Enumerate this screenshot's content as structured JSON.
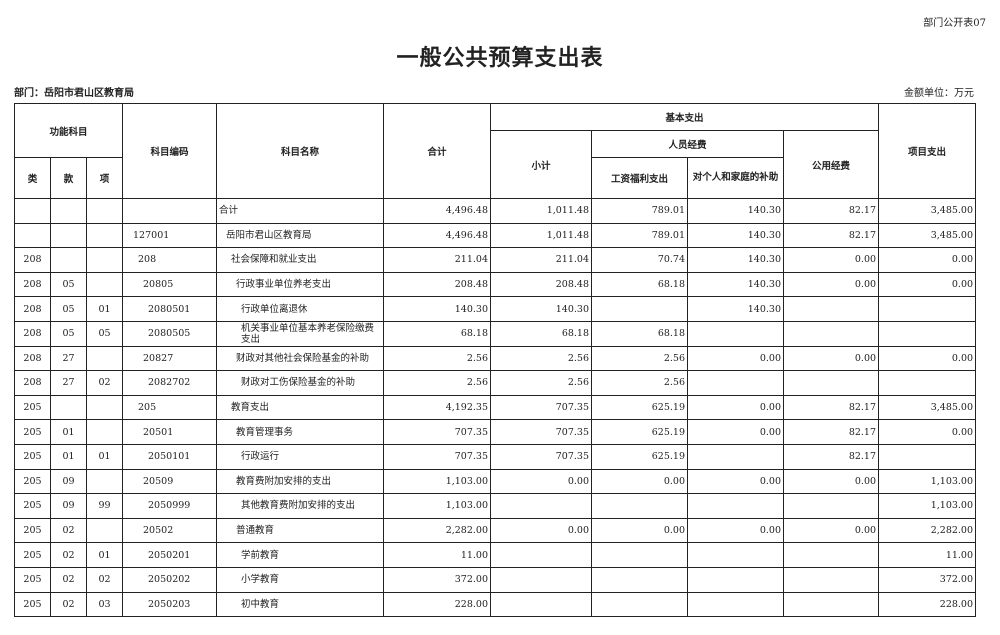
{
  "form_no": "部门公开表07",
  "title": "一般公共预算支出表",
  "department": "部门：岳阳市君山区教育局",
  "unit": "金额单位：万元",
  "headers": {
    "func_subject": "功能科目",
    "lei": "类",
    "kuan": "款",
    "xiang": "项",
    "code": "科目编码",
    "name": "科目名称",
    "total": "合计",
    "basic": "基本支出",
    "subtotal": "小计",
    "personnel": "人员经费",
    "salary": "工资福利支出",
    "subsidy": "对个人和家庭的补助",
    "public": "公用经费",
    "project": "项目支出"
  },
  "rows": [
    {
      "lei": "",
      "kuan": "",
      "xiang": "",
      "code": "",
      "name": "合计",
      "level": -1,
      "total": "4,496.48",
      "subtotal": "1,011.48",
      "salary": "789.01",
      "subsidy": "140.30",
      "public": "82.17",
      "project": "3,485.00"
    },
    {
      "lei": "",
      "kuan": "",
      "xiang": "",
      "code": "127001",
      "name": "岳阳市君山区教育局",
      "level": 0,
      "total": "4,496.48",
      "subtotal": "1,011.48",
      "salary": "789.01",
      "subsidy": "140.30",
      "public": "82.17",
      "project": "3,485.00"
    },
    {
      "lei": "208",
      "kuan": "",
      "xiang": "",
      "code": "208",
      "name": "社会保障和就业支出",
      "level": 1,
      "total": "211.04",
      "subtotal": "211.04",
      "salary": "70.74",
      "subsidy": "140.30",
      "public": "0.00",
      "project": "0.00"
    },
    {
      "lei": "208",
      "kuan": "05",
      "xiang": "",
      "code": "20805",
      "name": "行政事业单位养老支出",
      "level": 2,
      "total": "208.48",
      "subtotal": "208.48",
      "salary": "68.18",
      "subsidy": "140.30",
      "public": "0.00",
      "project": "0.00"
    },
    {
      "lei": "208",
      "kuan": "05",
      "xiang": "01",
      "code": "2080501",
      "name": "行政单位离退休",
      "level": 3,
      "total": "140.30",
      "subtotal": "140.30",
      "salary": "",
      "subsidy": "140.30",
      "public": "",
      "project": ""
    },
    {
      "lei": "208",
      "kuan": "05",
      "xiang": "05",
      "code": "2080505",
      "name": "机关事业单位基本养老保险缴费支出",
      "level": 3,
      "total": "68.18",
      "subtotal": "68.18",
      "salary": "68.18",
      "subsidy": "",
      "public": "",
      "project": ""
    },
    {
      "lei": "208",
      "kuan": "27",
      "xiang": "",
      "code": "20827",
      "name": "财政对其他社会保险基金的补助",
      "level": 2,
      "total": "2.56",
      "subtotal": "2.56",
      "salary": "2.56",
      "subsidy": "0.00",
      "public": "0.00",
      "project": "0.00"
    },
    {
      "lei": "208",
      "kuan": "27",
      "xiang": "02",
      "code": "2082702",
      "name": "财政对工伤保险基金的补助",
      "level": 3,
      "total": "2.56",
      "subtotal": "2.56",
      "salary": "2.56",
      "subsidy": "",
      "public": "",
      "project": ""
    },
    {
      "lei": "205",
      "kuan": "",
      "xiang": "",
      "code": "205",
      "name": "教育支出",
      "level": 1,
      "total": "4,192.35",
      "subtotal": "707.35",
      "salary": "625.19",
      "subsidy": "0.00",
      "public": "82.17",
      "project": "3,485.00"
    },
    {
      "lei": "205",
      "kuan": "01",
      "xiang": "",
      "code": "20501",
      "name": "教育管理事务",
      "level": 2,
      "total": "707.35",
      "subtotal": "707.35",
      "salary": "625.19",
      "subsidy": "0.00",
      "public": "82.17",
      "project": "0.00"
    },
    {
      "lei": "205",
      "kuan": "01",
      "xiang": "01",
      "code": "2050101",
      "name": "行政运行",
      "level": 3,
      "total": "707.35",
      "subtotal": "707.35",
      "salary": "625.19",
      "subsidy": "",
      "public": "82.17",
      "project": ""
    },
    {
      "lei": "205",
      "kuan": "09",
      "xiang": "",
      "code": "20509",
      "name": "教育费附加安排的支出",
      "level": 2,
      "total": "1,103.00",
      "subtotal": "0.00",
      "salary": "0.00",
      "subsidy": "0.00",
      "public": "0.00",
      "project": "1,103.00"
    },
    {
      "lei": "205",
      "kuan": "09",
      "xiang": "99",
      "code": "2050999",
      "name": "其他教育费附加安排的支出",
      "level": 3,
      "total": "1,103.00",
      "subtotal": "",
      "salary": "",
      "subsidy": "",
      "public": "",
      "project": "1,103.00"
    },
    {
      "lei": "205",
      "kuan": "02",
      "xiang": "",
      "code": "20502",
      "name": "普通教育",
      "level": 2,
      "total": "2,282.00",
      "subtotal": "0.00",
      "salary": "0.00",
      "subsidy": "0.00",
      "public": "0.00",
      "project": "2,282.00"
    },
    {
      "lei": "205",
      "kuan": "02",
      "xiang": "01",
      "code": "2050201",
      "name": "学前教育",
      "level": 3,
      "total": "11.00",
      "subtotal": "",
      "salary": "",
      "subsidy": "",
      "public": "",
      "project": "11.00"
    },
    {
      "lei": "205",
      "kuan": "02",
      "xiang": "02",
      "code": "2050202",
      "name": "小学教育",
      "level": 3,
      "total": "372.00",
      "subtotal": "",
      "salary": "",
      "subsidy": "",
      "public": "",
      "project": "372.00"
    },
    {
      "lei": "205",
      "kuan": "02",
      "xiang": "03",
      "code": "2050203",
      "name": "初中教育",
      "level": 3,
      "total": "228.00",
      "subtotal": "",
      "salary": "",
      "subsidy": "",
      "public": "",
      "project": "228.00"
    }
  ]
}
